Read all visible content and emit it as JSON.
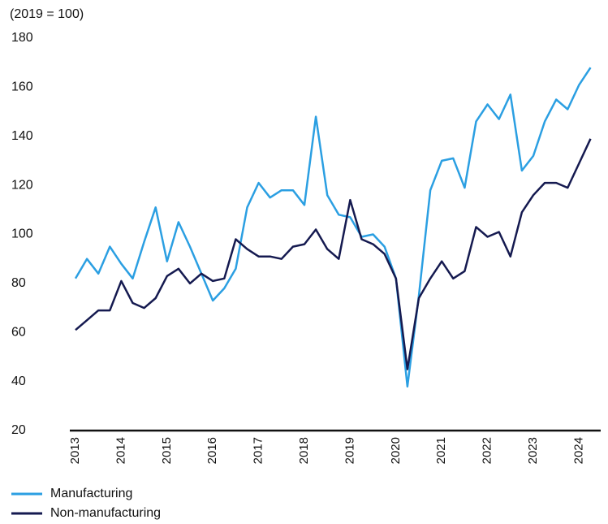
{
  "chart_data": {
    "type": "line",
    "y_axis_label": "(2019 = 100)",
    "categories": [
      "2013",
      null,
      null,
      null,
      "2014",
      null,
      null,
      null,
      "2015",
      null,
      null,
      null,
      "2016",
      null,
      null,
      null,
      "2017",
      null,
      null,
      null,
      "2018",
      null,
      null,
      null,
      "2019",
      null,
      null,
      null,
      "2020",
      null,
      null,
      null,
      "2021",
      null,
      null,
      null,
      "2022",
      null,
      null,
      null,
      "2023",
      null,
      null,
      null,
      "2024",
      null
    ],
    "series": [
      {
        "name": "Manufacturing",
        "color": "#2b9fe2",
        "values": [
          82,
          90,
          84,
          95,
          88,
          82,
          97,
          111,
          89,
          105,
          95,
          84,
          73,
          78,
          86,
          111,
          121,
          115,
          118,
          118,
          112,
          148,
          116,
          108,
          107,
          99,
          100,
          95,
          82,
          38,
          75,
          118,
          130,
          131,
          119,
          146,
          153,
          147,
          157,
          126,
          132,
          146,
          155,
          151,
          161,
          168
        ]
      },
      {
        "name": "Non-manufacturing",
        "color": "#151a50",
        "values": [
          61,
          65,
          69,
          69,
          81,
          72,
          70,
          74,
          83,
          86,
          80,
          84,
          81,
          82,
          98,
          94,
          91,
          91,
          90,
          95,
          96,
          102,
          94,
          90,
          114,
          98,
          96,
          92,
          82,
          45,
          74,
          82,
          89,
          82,
          85,
          103,
          99,
          101,
          91,
          109,
          116,
          121,
          121,
          119,
          129,
          139
        ]
      }
    ],
    "ylim": [
      20,
      180
    ],
    "yticks": [
      20,
      40,
      60,
      80,
      100,
      120,
      140,
      160,
      180
    ],
    "legend": "bottom-left"
  }
}
